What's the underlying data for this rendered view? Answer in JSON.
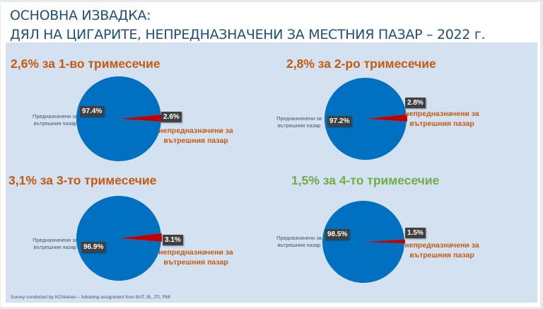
{
  "title": {
    "line1": "ОСНОВНА ИЗВАДКА:",
    "line2": "ДЯЛ НА ЦИГАРИТЕ, НЕПРЕДНАЗНАЧЕНИ ЗА МЕСТНИЯ ПАЗАР – 2022 г."
  },
  "footnote": "Survey conducted by ACNielsen – following assignment from BAT, IB, JTI, PMI",
  "colors": {
    "domestic": "#0070c0",
    "non_domestic": "#c00000",
    "title_orange": "#c55a11",
    "title_green": "#70ad47",
    "panel": "#d3e1f0"
  },
  "chart_data": [
    {
      "type": "pie",
      "title": "2,6% за 1-во тримесечие",
      "title_color": "#c55a11",
      "slices": [
        {
          "name": "Предназначени за вътрешния пазар",
          "value": 97.4,
          "label": "97.4%"
        },
        {
          "name": "непредназначени за вътрешния пазар",
          "value": 2.6,
          "label": "2.6%"
        }
      ]
    },
    {
      "type": "pie",
      "title": "2,8% за 2-ро тримесечие",
      "title_color": "#c55a11",
      "slices": [
        {
          "name": "Предназначени за вътрешния пазар",
          "value": 97.2,
          "label": "97.2%"
        },
        {
          "name": "непредназначени за вътрешния пазар",
          "value": 2.8,
          "label": "2.8%"
        }
      ]
    },
    {
      "type": "pie",
      "title": "3,1% за 3-то тримесечие",
      "title_color": "#c55a11",
      "slices": [
        {
          "name": "Предназначени за вътрешния пазар",
          "value": 96.9,
          "label": "96.9%"
        },
        {
          "name": "непредназначени за вътрешния пазар",
          "value": 3.1,
          "label": "3.1%"
        }
      ]
    },
    {
      "type": "pie",
      "title": "1,5% за 4-то тримесечие",
      "title_color": "#70ad47",
      "slices": [
        {
          "name": "Предназначени за вътрешния пазар",
          "value": 98.5,
          "label": "98.5%"
        },
        {
          "name": "непредназначени за вътрешния пазар",
          "value": 1.5,
          "label": "1.5%"
        }
      ]
    }
  ]
}
